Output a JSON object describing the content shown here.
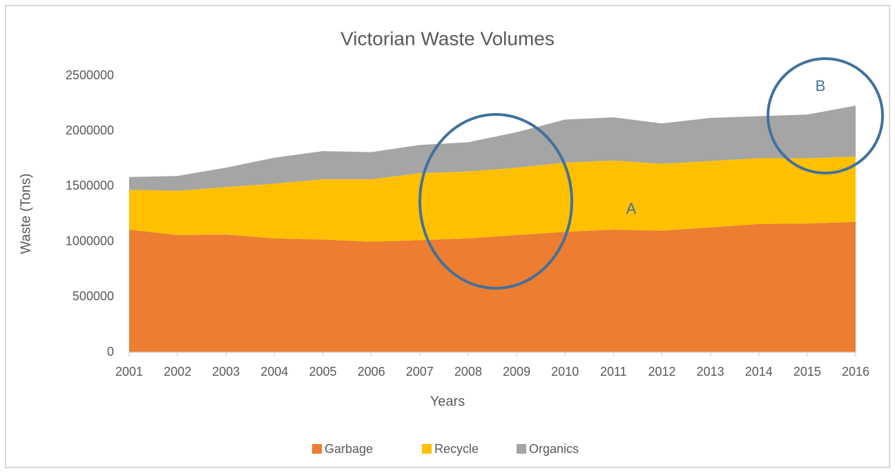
{
  "chart_data": {
    "type": "stacked_area",
    "title": "Victorian Waste Volumes",
    "x_label": "Years",
    "y_label": "Waste (Tons)",
    "x": [
      2001,
      2002,
      2003,
      2004,
      2005,
      2006,
      2007,
      2008,
      2009,
      2010,
      2011,
      2012,
      2013,
      2014,
      2015,
      2016
    ],
    "xlim": [
      2001,
      2016
    ],
    "xticks": [
      2001,
      2002,
      2003,
      2004,
      2005,
      2006,
      2007,
      2008,
      2009,
      2010,
      2011,
      2012,
      2013,
      2014,
      2015,
      2016
    ],
    "ylim": [
      0,
      2500000
    ],
    "yticks": [
      0,
      500000,
      1000000,
      1500000,
      2000000,
      2500000
    ],
    "grid": false,
    "legend": "bottom",
    "series": [
      {
        "name": "Garbage",
        "color": "#ed7d31",
        "values": [
          1110000,
          1060000,
          1065000,
          1030000,
          1020000,
          1000000,
          1015000,
          1030000,
          1060000,
          1090000,
          1110000,
          1100000,
          1130000,
          1160000,
          1165000,
          1180000
        ]
      },
      {
        "name": "Recycle",
        "color": "#ffc000",
        "values": [
          360000,
          400000,
          430000,
          495000,
          545000,
          565000,
          605000,
          605000,
          610000,
          625000,
          625000,
          605000,
          600000,
          595000,
          590000,
          590000
        ]
      },
      {
        "name": "Organics",
        "color": "#a5a5a5",
        "values": [
          115000,
          135000,
          175000,
          235000,
          255000,
          245000,
          255000,
          265000,
          320000,
          390000,
          390000,
          365000,
          390000,
          380000,
          395000,
          460000
        ]
      }
    ],
    "annotations": [
      "A",
      "B"
    ]
  }
}
